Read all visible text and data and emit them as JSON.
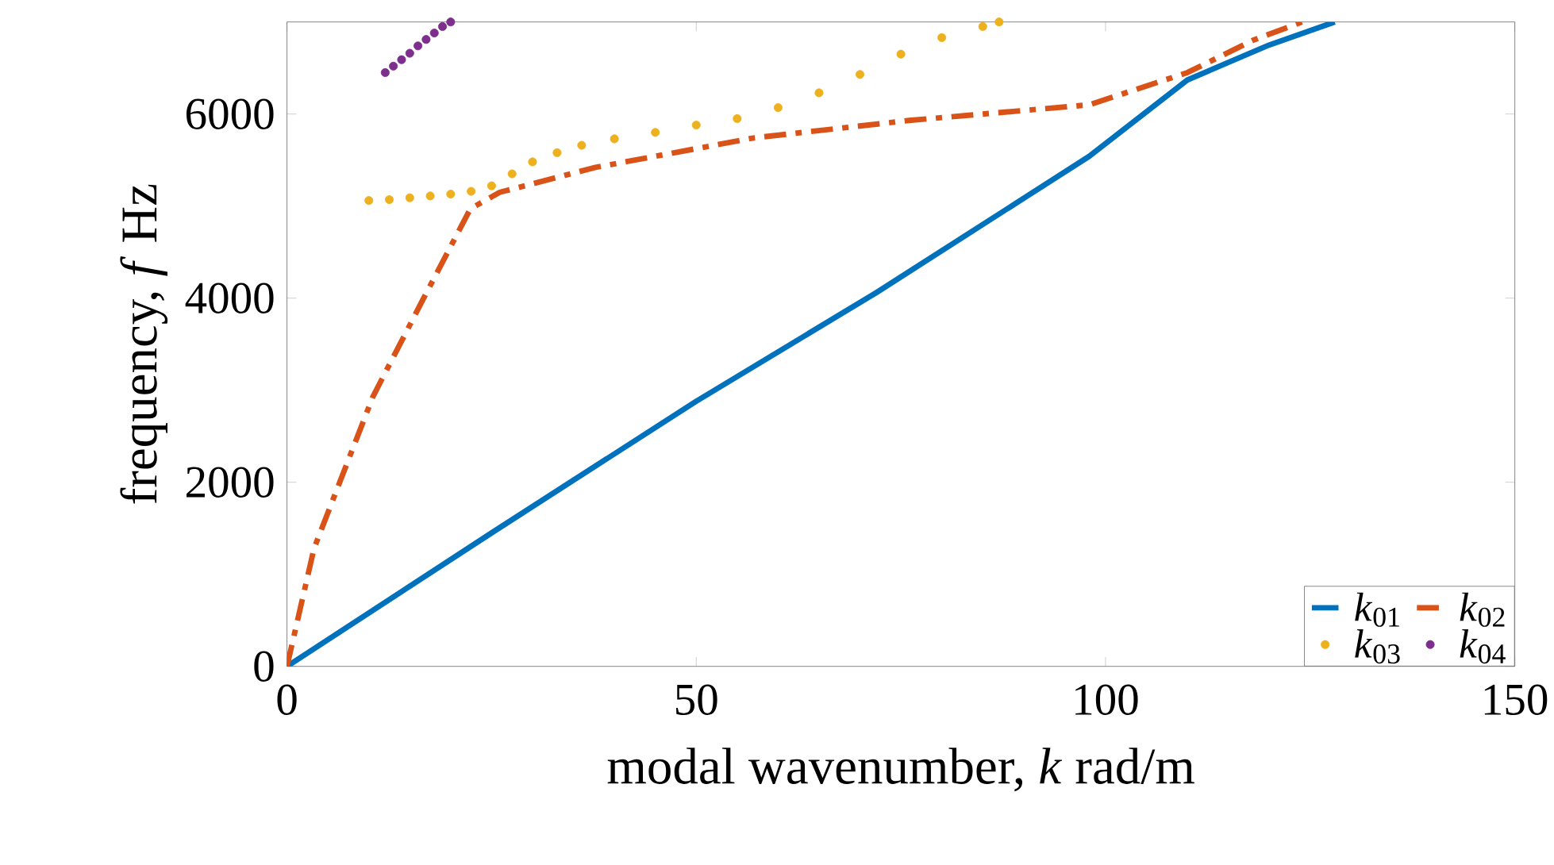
{
  "chart_data": {
    "type": "line",
    "xlabel": "modal wavenumber, *k* rad/m",
    "ylabel": "frequency, *f* Hz",
    "xlim": [
      0,
      150
    ],
    "xticks": [
      0,
      50,
      100,
      150
    ],
    "ylim": [
      0,
      7000
    ],
    "yticks": [
      0,
      2000,
      4000,
      6000
    ],
    "grid": false,
    "legend": "bottom right",
    "series": [
      {
        "name": "*k*$_{01}$",
        "color": "#0072bd",
        "line_style": "solid",
        "x": [
          0,
          25,
          50,
          72,
          98,
          110,
          120,
          128
        ],
        "values": [
          0,
          1450,
          2880,
          4060,
          5540,
          6370,
          6750,
          7000
        ]
      },
      {
        "name": "*k*$_{02}$",
        "color": "#d95319",
        "line_style": "dashed",
        "x": [
          0,
          3.3,
          10.5,
          16.7,
          22.4,
          26,
          37.7,
          57,
          76,
          98,
          110,
          118,
          124
        ],
        "values": [
          0,
          1280,
          2930,
          4000,
          4970,
          5150,
          5420,
          5740,
          5930,
          6100,
          6450,
          6800,
          7000
        ]
      },
      {
        "name": "*k*$_{03}$",
        "type": "scatter",
        "marker": "circle",
        "color": "#edb120",
        "x": [
          10,
          12.5,
          15,
          17.5,
          20,
          22.5,
          25,
          27.5,
          30,
          33,
          36,
          40,
          45,
          50,
          55,
          60,
          65,
          70,
          75,
          80,
          85,
          87
        ],
        "values": [
          5060,
          5070,
          5090,
          5110,
          5130,
          5160,
          5220,
          5350,
          5480,
          5580,
          5660,
          5730,
          5800,
          5880,
          5950,
          6070,
          6230,
          6430,
          6650,
          6830,
          6950,
          7000
        ]
      },
      {
        "name": "*k*$_{04}$",
        "type": "scatter",
        "marker": "circle",
        "color": "#7e2f8e",
        "x": [
          12,
          13,
          14,
          15,
          16,
          17,
          18,
          19,
          20
        ],
        "values": [
          6450,
          6520,
          6590,
          6660,
          6740,
          6810,
          6880,
          6950,
          7000
        ]
      }
    ]
  }
}
